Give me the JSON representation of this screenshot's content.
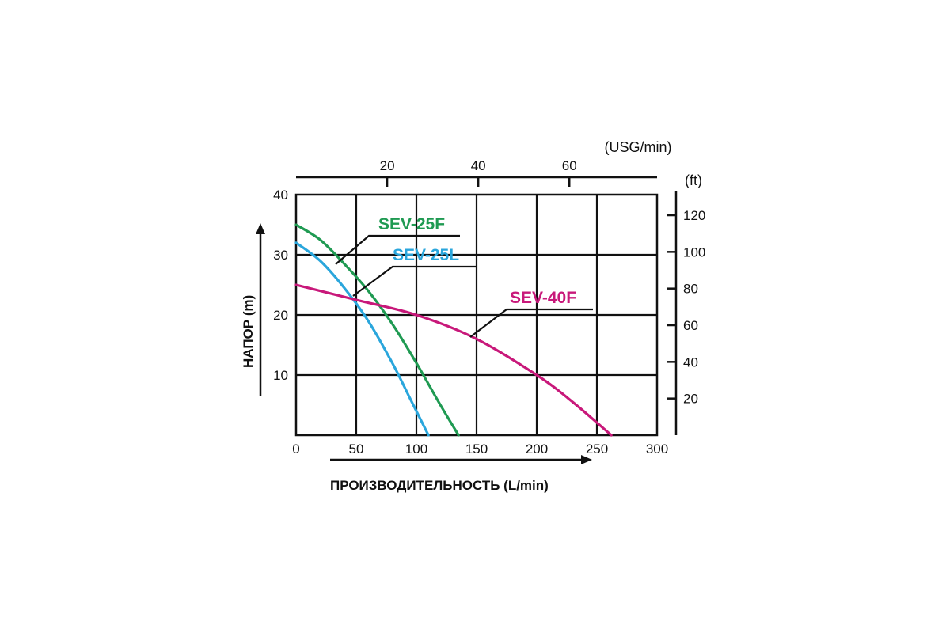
{
  "chart_data": {
    "type": "line",
    "title": "",
    "xlabel": "ПРОИЗВОДИТЕЛЬНОСТЬ (L/min)",
    "ylabel": "НАПОР (m)",
    "xlim": [
      0,
      300
    ],
    "ylim": [
      0,
      40
    ],
    "xticks": [
      "0",
      "50",
      "100",
      "150",
      "200",
      "250",
      "300"
    ],
    "yticks": [
      "10",
      "20",
      "30",
      "40"
    ],
    "x2_unit": "(USG/min)",
    "x2ticks": [
      {
        "label": "20",
        "value": 20
      },
      {
        "label": "40",
        "value": 40
      },
      {
        "label": "60",
        "value": 60
      }
    ],
    "y2_unit": "(ft)",
    "y2ticks": [
      {
        "label": "20",
        "value": 20
      },
      {
        "label": "40",
        "value": 40
      },
      {
        "label": "60",
        "value": 60
      },
      {
        "label": "80",
        "value": 80
      },
      {
        "label": "100",
        "value": 100
      },
      {
        "label": "120",
        "value": 120
      }
    ],
    "grid": true,
    "series": [
      {
        "name": "SEV-25F",
        "color": "#1f9a52",
        "x": [
          0,
          20,
          40,
          60,
          80,
          100,
          120,
          135
        ],
        "y": [
          35,
          32.5,
          28.5,
          24,
          18.5,
          12,
          5,
          0
        ]
      },
      {
        "name": "SEV-25L",
        "color": "#2aa6dc",
        "x": [
          0,
          20,
          40,
          60,
          80,
          95,
          110
        ],
        "y": [
          32,
          29,
          24.5,
          19,
          12,
          6,
          0
        ]
      },
      {
        "name": "SEV-40F",
        "color": "#c8187a",
        "x": [
          0,
          50,
          100,
          150,
          200,
          230,
          262
        ],
        "y": [
          25,
          22.5,
          20,
          16,
          10,
          5.5,
          0
        ]
      }
    ]
  }
}
